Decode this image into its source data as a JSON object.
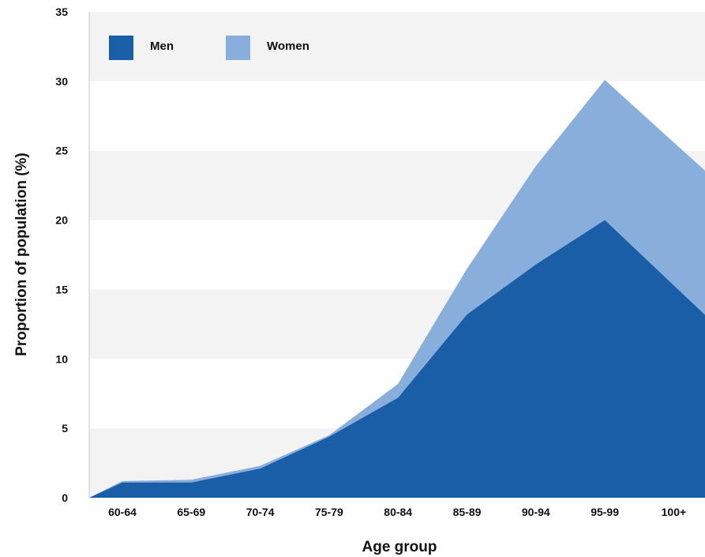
{
  "chart_data": {
    "type": "area",
    "stacked": true,
    "xlabel": "Age group",
    "ylabel": "Proportion of population (%)",
    "ylim": [
      0,
      35
    ],
    "yticks": [
      0,
      5,
      10,
      15,
      20,
      25,
      30,
      35
    ],
    "grid": "alternating horizontal bands",
    "legend": "top-left",
    "categories": [
      "60-64",
      "65-69",
      "70-74",
      "75-79",
      "80-84",
      "85-89",
      "90-94",
      "95-99",
      "100+"
    ],
    "series": [
      {
        "name": "Men",
        "color": "#1a5ea8",
        "values": [
          1.1,
          1.1,
          2.1,
          4.4,
          7.2,
          13.2,
          16.8,
          20.0,
          15.3
        ]
      },
      {
        "name": "Women",
        "color": "#88aedb",
        "values": [
          0.1,
          0.2,
          0.2,
          0.1,
          1.0,
          3.3,
          7.1,
          10.1,
          10.3
        ]
      }
    ]
  }
}
